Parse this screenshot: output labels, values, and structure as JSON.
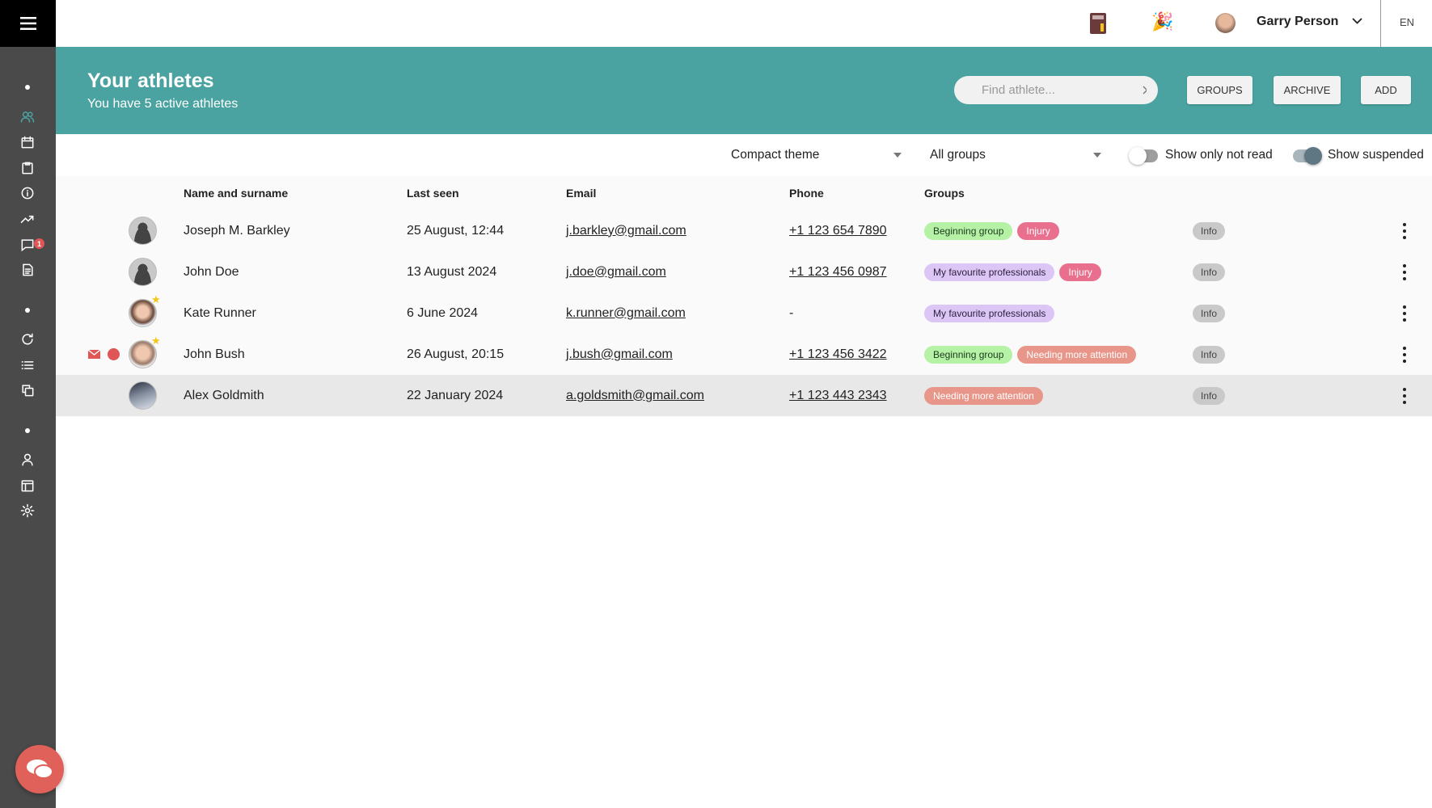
{
  "header": {
    "user_name": "Garry Person",
    "language": "EN"
  },
  "hero": {
    "title": "Your athletes",
    "subtitle": "You have 5 active athletes",
    "search_placeholder": "Find athlete...",
    "groups_label": "GROUPS",
    "archive_label": "ARCHIVE",
    "add_label": "ADD"
  },
  "filters": {
    "theme": "Compact theme",
    "group": "All groups",
    "not_read_label": "Show only not read",
    "not_read_on": false,
    "suspended_label": "Show suspended",
    "suspended_on": true
  },
  "sidebar": {
    "messages_badge": "1",
    "icons": [
      "users-icon",
      "calendar-icon",
      "clipboard-icon",
      "info-icon",
      "trending-icon",
      "messages-icon",
      "document-icon",
      "refresh-icon",
      "list-icon",
      "copy-icon",
      "user-icon",
      "layout-icon",
      "settings-icon"
    ]
  },
  "table": {
    "columns": [
      "Name and surname",
      "Last seen",
      "Email",
      "Phone",
      "Groups"
    ],
    "rows": [
      {
        "name": "Joseph M. Barkley",
        "last_seen": "25 August, 12:44",
        "email": "j.barkley@gmail.com",
        "phone": "+1 123 654 7890",
        "groups": [
          {
            "label": "Beginning group",
            "type": "green"
          },
          {
            "label": "Injury",
            "type": "pink"
          }
        ],
        "info": "Info",
        "avatar": "placeholder",
        "star": false,
        "unread": false
      },
      {
        "name": "John Doe",
        "last_seen": "13 August 2024",
        "email": "j.doe@gmail.com",
        "phone": "+1 123 456 0987",
        "groups": [
          {
            "label": "My favourite professionals",
            "type": "purple"
          },
          {
            "label": "Injury",
            "type": "pink"
          }
        ],
        "info": "Info",
        "avatar": "placeholder",
        "star": false,
        "unread": false
      },
      {
        "name": "Kate Runner",
        "last_seen": "6 June 2024",
        "email": "k.runner@gmail.com",
        "phone": "-",
        "groups": [
          {
            "label": "My favourite professionals",
            "type": "purple"
          }
        ],
        "info": "Info",
        "avatar": "photo",
        "star": true,
        "unread": false
      },
      {
        "name": "John Bush",
        "last_seen": "26 August, 20:15",
        "email": "j.bush@gmail.com",
        "phone": "+1 123 456 3422",
        "groups": [
          {
            "label": "Beginning group",
            "type": "green"
          },
          {
            "label": "Needing more attention",
            "type": "salmon"
          }
        ],
        "info": "Info",
        "avatar": "photo",
        "star": true,
        "unread": true
      },
      {
        "name": "Alex Goldmith",
        "last_seen": "22 January 2024",
        "email": "a.goldsmith@gmail.com",
        "phone": "+1 123 443 2343",
        "groups": [
          {
            "label": "Needing more attention",
            "type": "salmon"
          }
        ],
        "info": "Info",
        "avatar": "photo",
        "star": false,
        "unread": false,
        "highlighted": true
      }
    ]
  },
  "colors": {
    "teal": "#4aa3a0",
    "sidebar": "#4a4a4a",
    "green": "#b5f2a6",
    "pink": "#e86f8e",
    "purple": "#dcc6f5",
    "salmon": "#e8968a",
    "alert": "#e05555"
  }
}
